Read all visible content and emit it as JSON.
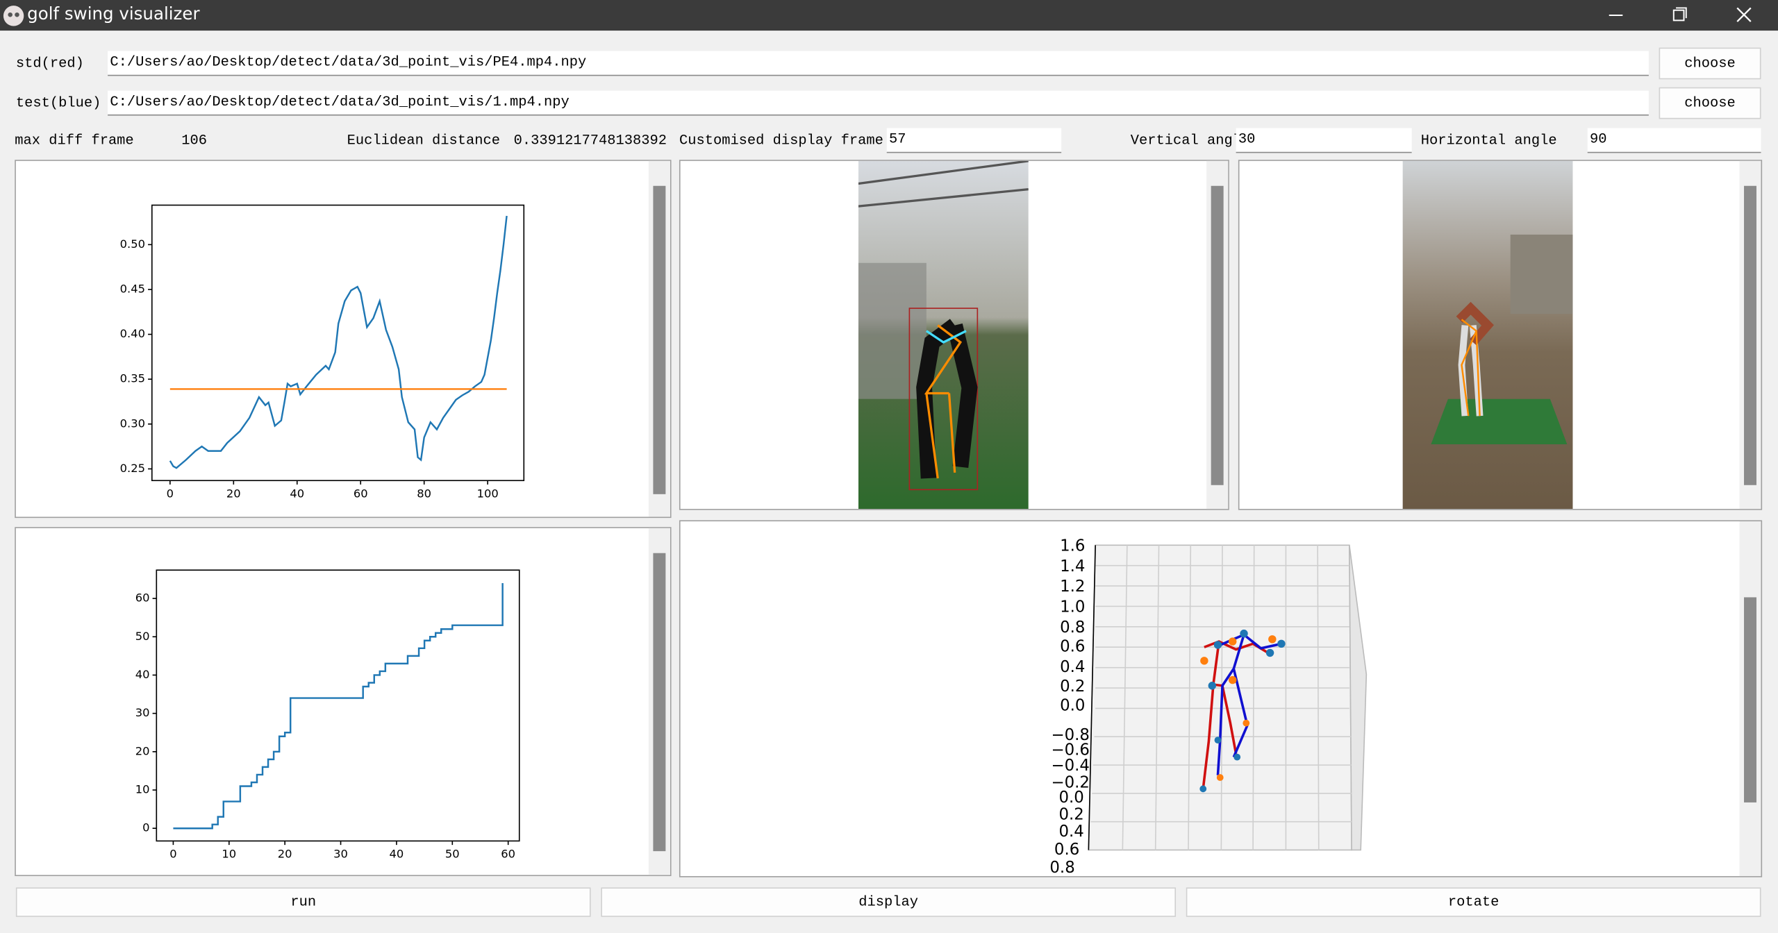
{
  "window": {
    "title": "golf swing visualizer"
  },
  "files": {
    "std_label": "std(red)",
    "std_path": "C:/Users/ao/Desktop/detect/data/3d_point_vis/PE4.mp4.npy",
    "std_button": "choose",
    "test_label": "test(blue)",
    "test_path": "C:/Users/ao/Desktop/detect/data/3d_point_vis/1.mp4.npy",
    "test_button": "choose"
  },
  "stats": {
    "max_diff_label": "max diff frame",
    "max_diff_value": 106,
    "distance_label": "Euclidean distance",
    "distance_value": 0.3391217748138392,
    "frame_label": "Customised display frame",
    "frame_value": 57,
    "vertical_label": "Vertical angle",
    "vertical_value": 30,
    "horizontal_label": "Horizontal angle",
    "horizontal_value": 90
  },
  "buttons": [
    "run",
    "display",
    "rotate"
  ],
  "chart_data": [
    {
      "type": "line",
      "series": [
        {
          "color": "#1f77b4",
          "x": [
            0,
            1,
            2,
            5,
            8,
            10,
            12,
            16,
            18,
            22,
            25,
            28,
            30,
            31,
            33,
            35,
            36,
            37,
            38,
            40,
            41,
            43,
            46,
            49,
            50,
            52,
            53,
            55,
            57,
            59,
            60,
            62,
            64,
            66,
            68,
            70,
            72,
            73,
            75,
            77,
            78,
            79,
            80,
            82,
            84,
            86,
            88,
            90,
            92,
            94,
            96,
            98,
            99,
            100,
            101,
            102,
            103,
            104,
            105,
            106
          ],
          "values": [
            0.259,
            0.253,
            0.251,
            0.26,
            0.27,
            0.275,
            0.27,
            0.27,
            0.279,
            0.292,
            0.307,
            0.33,
            0.321,
            0.324,
            0.298,
            0.304,
            0.324,
            0.345,
            0.342,
            0.345,
            0.333,
            0.342,
            0.355,
            0.365,
            0.361,
            0.38,
            0.412,
            0.437,
            0.449,
            0.453,
            0.446,
            0.408,
            0.418,
            0.437,
            0.405,
            0.386,
            0.361,
            0.33,
            0.302,
            0.294,
            0.263,
            0.26,
            0.285,
            0.302,
            0.294,
            0.307,
            0.317,
            0.327,
            0.332,
            0.336,
            0.342,
            0.347,
            0.355,
            0.374,
            0.393,
            0.418,
            0.446,
            0.471,
            0.5,
            0.532
          ]
        },
        {
          "color": "#ff7f0e",
          "x": [
            0,
            106
          ],
          "values": [
            0.339,
            0.339
          ]
        }
      ],
      "xlim": [
        -5.7,
        111.4
      ],
      "ylim": [
        0.237,
        0.544
      ],
      "xticks": [
        0,
        20,
        40,
        60,
        80,
        100
      ],
      "yticks": [
        0.25,
        {
          "value": 0.3,
          "label": "0.30"
        },
        0.35,
        {
          "value": 0.4,
          "label": "0.40"
        },
        0.45,
        {
          "value": 0.5,
          "label": "0.50"
        }
      ]
    },
    {
      "type": "line",
      "drawstyle": "steps-post",
      "series": [
        {
          "color": "#1f77b4",
          "x": [
            0,
            7,
            8,
            9,
            11,
            12,
            14,
            15,
            16,
            17,
            18,
            19,
            20,
            21,
            33,
            34,
            35,
            36,
            37,
            38,
            40,
            42,
            44,
            45,
            46,
            47,
            48,
            50,
            59,
            59
          ],
          "values": [
            0,
            1,
            3,
            7,
            7,
            11,
            12,
            14,
            16,
            18,
            20,
            24,
            25,
            34,
            34,
            37,
            38,
            40,
            41,
            43,
            43,
            45,
            47,
            49,
            50,
            51,
            52,
            53,
            53,
            64
          ]
        }
      ],
      "xlim": [
        -3,
        62
      ],
      "ylim": [
        -3.3,
        67.4
      ],
      "xticks": [
        0,
        10,
        20,
        30,
        40,
        50,
        60
      ],
      "yticks": [
        0,
        10,
        20,
        30,
        40,
        50,
        60
      ]
    }
  ],
  "plot3d": {
    "axis_labels": [
      "1.6",
      "1.4",
      "1.2",
      "1.0",
      "0.8",
      "0.6",
      "0.4",
      "0.2",
      "0.0",
      "−0.8",
      "−0.6",
      "−0.4",
      "−0.2",
      "0.0",
      "0.2",
      "0.4",
      "0.6",
      "0.8"
    ]
  }
}
